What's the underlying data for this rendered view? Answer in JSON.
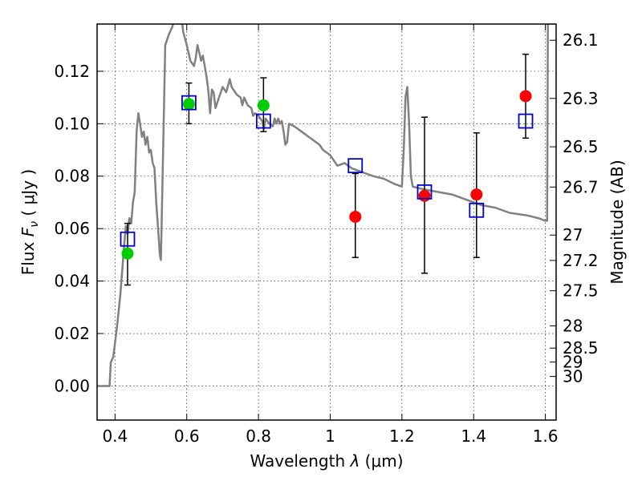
{
  "chart_data": {
    "type": "scatter",
    "x": {
      "label_prefix": "Wavelength  ",
      "label_symbol": "λ",
      "label_unit": " (μm)",
      "range": [
        0.35,
        1.63
      ],
      "ticks": [
        0.4,
        0.6,
        0.8,
        1.0,
        1.2,
        1.4,
        1.6
      ],
      "tick_labels": [
        "0.4",
        "0.6",
        "0.8",
        "1",
        "1.2",
        "1.4",
        "1.6"
      ]
    },
    "y": {
      "label_prefix": "Flux  ",
      "label_symbol": "F",
      "label_subscript": "ν",
      "label_unit": "  ( μJy )",
      "range": [
        -0.013,
        0.138
      ],
      "ticks": [
        0.0,
        0.02,
        0.04,
        0.06,
        0.08,
        0.1,
        0.12
      ],
      "tick_labels": [
        "0.00",
        "0.02",
        "0.04",
        "0.06",
        "0.08",
        "0.10",
        "0.12"
      ]
    },
    "y2": {
      "label": "Magnitude (AB)",
      "ticks": [
        {
          "mag": 26.1,
          "label": "26.1"
        },
        {
          "mag": 26.3,
          "label": "26.3"
        },
        {
          "mag": 26.5,
          "label": "26.5"
        },
        {
          "mag": 26.7,
          "label": "26.7"
        },
        {
          "mag": 27.0,
          "label": "27"
        },
        {
          "mag": 27.2,
          "label": "27.2"
        },
        {
          "mag": 27.5,
          "label": "27.5"
        },
        {
          "mag": 28.0,
          "label": "28"
        },
        {
          "mag": 28.5,
          "label": "28.5"
        },
        {
          "mag": 29.0,
          "label": "29"
        },
        {
          "mag": 30.0,
          "label": "30"
        }
      ]
    },
    "grid": true,
    "colors": {
      "model": "#808080",
      "detection": "#00cc00",
      "upper": "#ff0000",
      "model_point": "#0000cc",
      "errorbar": "#000000"
    },
    "template_spectrum": [
      [
        0.35,
        0.0
      ],
      [
        0.385,
        0.0
      ],
      [
        0.388,
        0.009
      ],
      [
        0.395,
        0.011
      ],
      [
        0.405,
        0.022
      ],
      [
        0.415,
        0.035
      ],
      [
        0.42,
        0.044
      ],
      [
        0.425,
        0.053
      ],
      [
        0.43,
        0.061
      ],
      [
        0.435,
        0.058
      ],
      [
        0.44,
        0.064
      ],
      [
        0.445,
        0.062
      ],
      [
        0.45,
        0.07
      ],
      [
        0.455,
        0.074
      ],
      [
        0.46,
        0.097
      ],
      [
        0.465,
        0.104
      ],
      [
        0.47,
        0.1
      ],
      [
        0.475,
        0.095
      ],
      [
        0.48,
        0.097
      ],
      [
        0.485,
        0.092
      ],
      [
        0.49,
        0.095
      ],
      [
        0.495,
        0.089
      ],
      [
        0.5,
        0.09
      ],
      [
        0.505,
        0.085
      ],
      [
        0.51,
        0.083
      ],
      [
        0.515,
        0.07
      ],
      [
        0.52,
        0.06
      ],
      [
        0.525,
        0.05
      ],
      [
        0.528,
        0.048
      ],
      [
        0.532,
        0.075
      ],
      [
        0.54,
        0.13
      ],
      [
        0.55,
        0.134
      ],
      [
        0.56,
        0.137
      ],
      [
        0.565,
        0.14
      ],
      [
        0.57,
        0.141
      ],
      [
        0.575,
        0.141
      ],
      [
        0.58,
        0.139
      ],
      [
        0.585,
        0.141
      ],
      [
        0.59,
        0.135
      ],
      [
        0.6,
        0.13
      ],
      [
        0.61,
        0.124
      ],
      [
        0.62,
        0.122
      ],
      [
        0.625,
        0.125
      ],
      [
        0.63,
        0.13
      ],
      [
        0.635,
        0.127
      ],
      [
        0.64,
        0.124
      ],
      [
        0.645,
        0.126
      ],
      [
        0.65,
        0.122
      ],
      [
        0.655,
        0.118
      ],
      [
        0.66,
        0.113
      ],
      [
        0.665,
        0.104
      ],
      [
        0.67,
        0.113
      ],
      [
        0.675,
        0.112
      ],
      [
        0.68,
        0.106
      ],
      [
        0.69,
        0.11
      ],
      [
        0.7,
        0.114
      ],
      [
        0.71,
        0.112
      ],
      [
        0.72,
        0.117
      ],
      [
        0.725,
        0.114
      ],
      [
        0.73,
        0.113
      ],
      [
        0.74,
        0.111
      ],
      [
        0.75,
        0.11
      ],
      [
        0.755,
        0.107
      ],
      [
        0.76,
        0.11
      ],
      [
        0.77,
        0.107
      ],
      [
        0.78,
        0.106
      ],
      [
        0.785,
        0.103
      ],
      [
        0.79,
        0.104
      ],
      [
        0.8,
        0.103
      ],
      [
        0.81,
        0.101
      ],
      [
        0.815,
        0.098
      ],
      [
        0.82,
        0.102
      ],
      [
        0.83,
        0.1
      ],
      [
        0.84,
        0.099
      ],
      [
        0.845,
        0.102
      ],
      [
        0.85,
        0.1
      ],
      [
        0.855,
        0.102
      ],
      [
        0.86,
        0.1
      ],
      [
        0.865,
        0.101
      ],
      [
        0.87,
        0.097
      ],
      [
        0.875,
        0.092
      ],
      [
        0.88,
        0.093
      ],
      [
        0.885,
        0.1
      ],
      [
        0.9,
        0.099
      ],
      [
        0.91,
        0.098
      ],
      [
        0.92,
        0.097
      ],
      [
        0.93,
        0.096
      ],
      [
        0.94,
        0.095
      ],
      [
        0.95,
        0.094
      ],
      [
        0.96,
        0.093
      ],
      [
        0.97,
        0.092
      ],
      [
        0.98,
        0.09
      ],
      [
        0.99,
        0.089
      ],
      [
        1.0,
        0.088
      ],
      [
        1.01,
        0.086
      ],
      [
        1.02,
        0.084
      ],
      [
        1.04,
        0.085
      ],
      [
        1.06,
        0.083
      ],
      [
        1.08,
        0.082
      ],
      [
        1.1,
        0.081
      ],
      [
        1.12,
        0.08
      ],
      [
        1.15,
        0.079
      ],
      [
        1.18,
        0.077
      ],
      [
        1.2,
        0.076
      ],
      [
        1.205,
        0.09
      ],
      [
        1.21,
        0.11
      ],
      [
        1.215,
        0.114
      ],
      [
        1.22,
        0.1
      ],
      [
        1.225,
        0.08
      ],
      [
        1.23,
        0.076
      ],
      [
        1.26,
        0.075
      ],
      [
        1.3,
        0.074
      ],
      [
        1.34,
        0.073
      ],
      [
        1.38,
        0.071
      ],
      [
        1.42,
        0.069
      ],
      [
        1.46,
        0.068
      ],
      [
        1.5,
        0.066
      ],
      [
        1.55,
        0.065
      ],
      [
        1.58,
        0.064
      ],
      [
        1.6,
        0.063
      ],
      [
        1.605,
        0.063
      ],
      [
        1.607,
        0.14
      ]
    ],
    "model_points": [
      {
        "x": 0.435,
        "y": 0.056
      },
      {
        "x": 0.606,
        "y": 0.108
      },
      {
        "x": 0.814,
        "y": 0.101
      },
      {
        "x": 1.07,
        "y": 0.084
      },
      {
        "x": 1.263,
        "y": 0.074
      },
      {
        "x": 1.408,
        "y": 0.067
      },
      {
        "x": 1.545,
        "y": 0.101
      }
    ],
    "detections": [
      {
        "x": 0.435,
        "y": 0.0505,
        "err_lo": 0.0385,
        "err_hi": 0.062
      },
      {
        "x": 0.606,
        "y": 0.1075,
        "err_lo": 0.1,
        "err_hi": 0.1155
      },
      {
        "x": 0.814,
        "y": 0.107,
        "err_lo": 0.097,
        "err_hi": 0.1175
      }
    ],
    "nondetections": [
      {
        "x": 1.07,
        "y": 0.0645,
        "err_lo": 0.049,
        "err_hi": 0.081
      },
      {
        "x": 1.263,
        "y": 0.0725,
        "err_lo": 0.043,
        "err_hi": 0.1025
      },
      {
        "x": 1.408,
        "y": 0.073,
        "err_lo": 0.049,
        "err_hi": 0.0965
      },
      {
        "x": 1.545,
        "y": 0.1105,
        "err_lo": 0.0945,
        "err_hi": 0.1265
      }
    ]
  }
}
